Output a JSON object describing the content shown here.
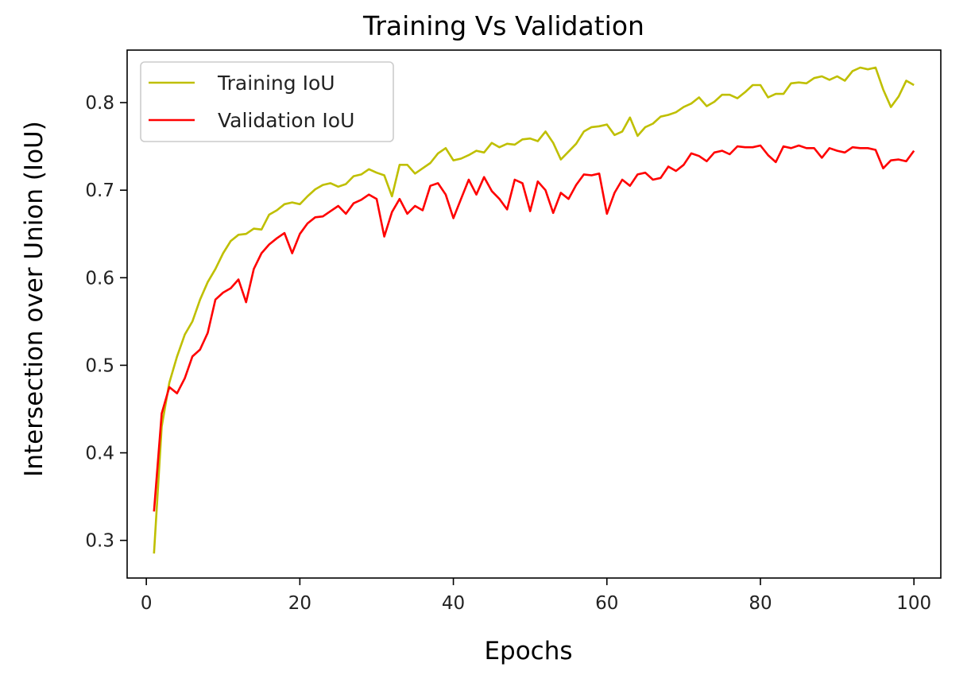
{
  "chart_data": {
    "type": "line",
    "title": "Training Vs Validation",
    "xlabel": "Epochs",
    "ylabel": "Intersection over Union (IoU)",
    "xlim": [
      -2.5,
      103.5
    ],
    "ylim": [
      0.257,
      0.86
    ],
    "xticks": [
      0,
      20,
      40,
      60,
      80,
      100
    ],
    "yticks": [
      0.3,
      0.4,
      0.5,
      0.6,
      0.7,
      0.8
    ],
    "grid": false,
    "legend_position": "top-left",
    "x": [
      1,
      2,
      3,
      4,
      5,
      6,
      7,
      8,
      9,
      10,
      11,
      12,
      13,
      14,
      15,
      16,
      17,
      18,
      19,
      20,
      21,
      22,
      23,
      24,
      25,
      26,
      27,
      28,
      29,
      30,
      31,
      32,
      33,
      34,
      35,
      36,
      37,
      38,
      39,
      40,
      41,
      42,
      43,
      44,
      45,
      46,
      47,
      48,
      49,
      50,
      51,
      52,
      53,
      54,
      55,
      56,
      57,
      58,
      59,
      60,
      61,
      62,
      63,
      64,
      65,
      66,
      67,
      68,
      69,
      70,
      71,
      72,
      73,
      74,
      75,
      76,
      77,
      78,
      79,
      80,
      81,
      82,
      83,
      84,
      85,
      86,
      87,
      88,
      89,
      90,
      91,
      92,
      93,
      94,
      95,
      96,
      97,
      98,
      99,
      100
    ],
    "series": [
      {
        "name": "Training IoU",
        "color": "#bfbf00",
        "values": [
          0.285,
          0.43,
          0.48,
          0.51,
          0.535,
          0.55,
          0.575,
          0.595,
          0.61,
          0.628,
          0.642,
          0.649,
          0.65,
          0.656,
          0.655,
          0.672,
          0.677,
          0.684,
          0.686,
          0.684,
          0.693,
          0.701,
          0.706,
          0.708,
          0.704,
          0.707,
          0.716,
          0.718,
          0.724,
          0.72,
          0.717,
          0.693,
          0.729,
          0.729,
          0.719,
          0.725,
          0.731,
          0.742,
          0.748,
          0.734,
          0.736,
          0.74,
          0.745,
          0.743,
          0.754,
          0.749,
          0.753,
          0.752,
          0.758,
          0.759,
          0.756,
          0.767,
          0.754,
          0.735,
          0.744,
          0.753,
          0.767,
          0.772,
          0.773,
          0.775,
          0.763,
          0.767,
          0.783,
          0.762,
          0.772,
          0.776,
          0.784,
          0.786,
          0.789,
          0.795,
          0.799,
          0.806,
          0.796,
          0.801,
          0.809,
          0.809,
          0.805,
          0.812,
          0.82,
          0.82,
          0.806,
          0.81,
          0.81,
          0.822,
          0.823,
          0.822,
          0.828,
          0.83,
          0.826,
          0.83,
          0.825,
          0.836,
          0.84,
          0.838,
          0.84,
          0.815,
          0.795,
          0.807,
          0.825,
          0.82
        ]
      },
      {
        "name": "Validation IoU",
        "color": "#ff0000",
        "values": [
          0.333,
          0.445,
          0.475,
          0.468,
          0.485,
          0.51,
          0.518,
          0.537,
          0.575,
          0.583,
          0.588,
          0.598,
          0.572,
          0.61,
          0.628,
          0.638,
          0.645,
          0.651,
          0.628,
          0.65,
          0.662,
          0.669,
          0.67,
          0.676,
          0.682,
          0.673,
          0.685,
          0.689,
          0.695,
          0.69,
          0.647,
          0.675,
          0.69,
          0.673,
          0.682,
          0.677,
          0.705,
          0.708,
          0.695,
          0.668,
          0.69,
          0.712,
          0.695,
          0.715,
          0.699,
          0.69,
          0.678,
          0.712,
          0.708,
          0.676,
          0.71,
          0.7,
          0.674,
          0.697,
          0.69,
          0.706,
          0.718,
          0.717,
          0.719,
          0.673,
          0.697,
          0.712,
          0.705,
          0.718,
          0.72,
          0.712,
          0.714,
          0.727,
          0.722,
          0.729,
          0.742,
          0.739,
          0.733,
          0.743,
          0.745,
          0.741,
          0.75,
          0.749,
          0.749,
          0.751,
          0.74,
          0.732,
          0.75,
          0.748,
          0.751,
          0.748,
          0.748,
          0.737,
          0.748,
          0.745,
          0.743,
          0.749,
          0.748,
          0.748,
          0.746,
          0.725,
          0.734,
          0.735,
          0.733,
          0.745
        ]
      }
    ]
  }
}
